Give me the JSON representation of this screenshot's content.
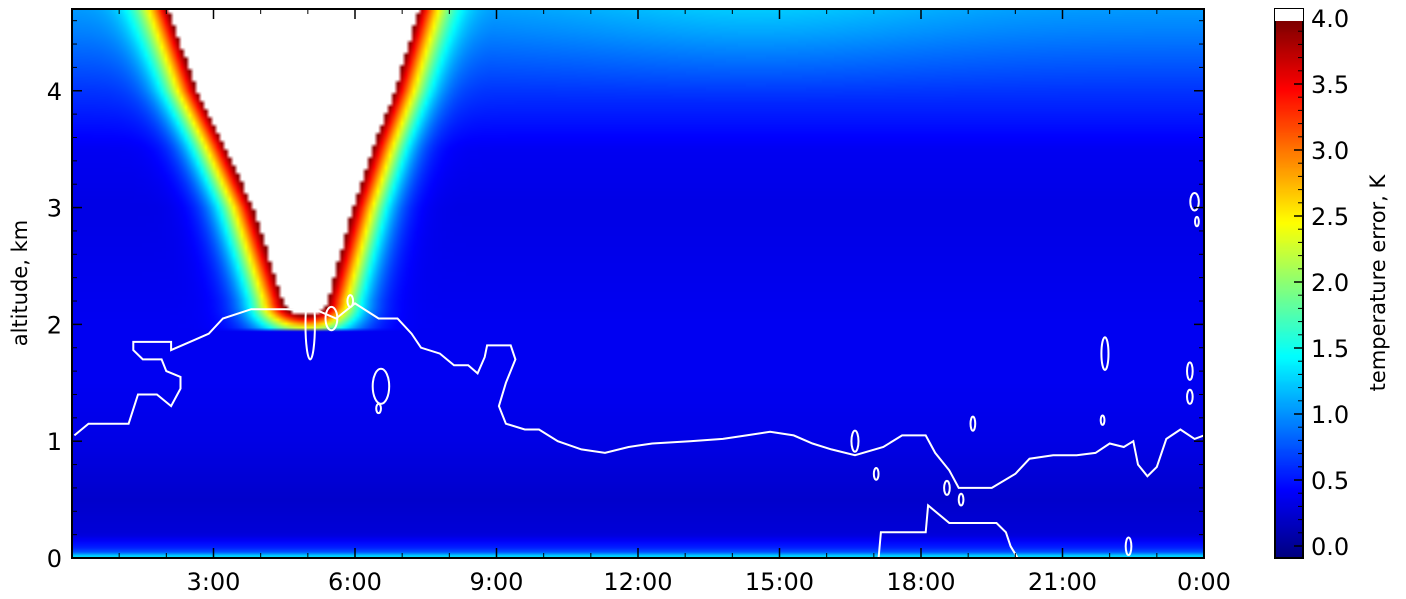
{
  "chart_data": {
    "type": "heatmap",
    "title": "",
    "xlabel": "",
    "ylabel": "altitude, km",
    "colorbar_label": "temperature error, K",
    "x_ticks": [
      "3:00",
      "6:00",
      "9:00",
      "12:00",
      "15:00",
      "18:00",
      "21:00",
      "0:00"
    ],
    "y_ticks": [
      "0",
      "1",
      "2",
      "3",
      "4"
    ],
    "colorbar_ticks": [
      "0.0",
      "0.5",
      "1.0",
      "1.5",
      "2.0",
      "2.5",
      "3.0",
      "3.5",
      "4.0"
    ],
    "xlim_hours": [
      0,
      24
    ],
    "ylim_km": [
      0,
      4.7
    ],
    "clim": [
      0,
      4
    ],
    "colormap": "jet",
    "colormap_over_color": "#ffffff",
    "contour_color": "#ffffff",
    "error_profile_clear": [
      {
        "altitude_km": 0.0,
        "error_K": 1.6
      },
      {
        "altitude_km": 0.06,
        "error_K": 0.7
      },
      {
        "altitude_km": 0.2,
        "error_K": 0.35
      },
      {
        "altitude_km": 0.5,
        "error_K": 0.3
      },
      {
        "altitude_km": 1.0,
        "error_K": 0.4
      },
      {
        "altitude_km": 1.5,
        "error_K": 0.45
      },
      {
        "altitude_km": 2.0,
        "error_K": 0.45
      },
      {
        "altitude_km": 3.0,
        "error_K": 0.4
      },
      {
        "altitude_km": 3.5,
        "error_K": 0.45
      },
      {
        "altitude_km": 4.0,
        "error_K": 0.7
      },
      {
        "altitude_km": 4.5,
        "error_K": 1.0
      },
      {
        "altitude_km": 4.7,
        "error_K": 1.1
      }
    ],
    "high_error_plume": {
      "description_of_values": "time (h) of the plume centre and its half-width at each altitude",
      "profile": [
        {
          "altitude_km": 2.2,
          "center_h": 4.95,
          "halfwidth_h": 0.0
        },
        {
          "altitude_km": 3.0,
          "center_h": 4.9,
          "halfwidth_h": 0.6
        },
        {
          "altitude_km": 4.0,
          "center_h": 4.75,
          "halfwidth_h": 1.55
        },
        {
          "altitude_km": 4.7,
          "center_h": 4.7,
          "halfwidth_h": 2.0
        }
      ],
      "peak_error_K": 4.5
    },
    "boundary_layer_contour": [
      [
        0.05,
        1.05
      ],
      [
        0.35,
        1.15
      ],
      [
        1.2,
        1.15
      ],
      [
        1.4,
        1.4
      ],
      [
        1.8,
        1.4
      ],
      [
        2.1,
        1.3
      ],
      [
        2.3,
        1.45
      ],
      [
        2.3,
        1.55
      ],
      [
        2.0,
        1.6
      ],
      [
        1.9,
        1.7
      ],
      [
        1.5,
        1.7
      ],
      [
        1.3,
        1.78
      ],
      [
        1.3,
        1.85
      ],
      [
        2.1,
        1.85
      ],
      [
        2.1,
        1.78
      ],
      [
        2.5,
        1.85
      ],
      [
        2.9,
        1.92
      ],
      [
        3.2,
        2.05
      ],
      [
        3.8,
        2.13
      ],
      [
        4.6,
        2.13
      ],
      [
        5.2,
        2.12
      ],
      [
        5.6,
        2.05
      ],
      [
        6.0,
        2.18
      ],
      [
        6.5,
        2.05
      ],
      [
        6.9,
        2.05
      ],
      [
        7.2,
        1.92
      ],
      [
        7.4,
        1.8
      ],
      [
        7.8,
        1.75
      ],
      [
        8.1,
        1.65
      ],
      [
        8.4,
        1.65
      ],
      [
        8.6,
        1.58
      ],
      [
        8.75,
        1.72
      ],
      [
        8.8,
        1.82
      ],
      [
        9.3,
        1.82
      ],
      [
        9.4,
        1.7
      ],
      [
        9.2,
        1.5
      ],
      [
        9.05,
        1.3
      ],
      [
        9.2,
        1.15
      ],
      [
        9.6,
        1.1
      ],
      [
        9.9,
        1.1
      ],
      [
        10.3,
        1.0
      ],
      [
        10.8,
        0.93
      ],
      [
        11.3,
        0.9
      ],
      [
        11.8,
        0.95
      ],
      [
        12.3,
        0.98
      ],
      [
        13.1,
        1.0
      ],
      [
        13.8,
        1.02
      ],
      [
        14.3,
        1.05
      ],
      [
        14.8,
        1.08
      ],
      [
        15.3,
        1.05
      ],
      [
        15.7,
        0.98
      ],
      [
        16.1,
        0.93
      ],
      [
        16.6,
        0.88
      ],
      [
        17.2,
        0.95
      ],
      [
        17.6,
        1.05
      ],
      [
        18.1,
        1.05
      ],
      [
        18.3,
        0.9
      ],
      [
        18.6,
        0.75
      ],
      [
        18.8,
        0.6
      ],
      [
        19.5,
        0.6
      ],
      [
        20.0,
        0.72
      ],
      [
        20.3,
        0.85
      ],
      [
        20.8,
        0.88
      ],
      [
        21.3,
        0.88
      ],
      [
        21.7,
        0.9
      ],
      [
        22.0,
        0.98
      ],
      [
        22.3,
        0.95
      ],
      [
        22.5,
        1.0
      ],
      [
        22.6,
        0.8
      ],
      [
        22.8,
        0.7
      ],
      [
        23.0,
        0.78
      ],
      [
        23.2,
        1.02
      ],
      [
        23.5,
        1.1
      ],
      [
        23.8,
        1.02
      ],
      [
        24.0,
        1.05
      ]
    ],
    "lower_contour": [
      [
        17.1,
        0.0
      ],
      [
        17.15,
        0.22
      ],
      [
        17.6,
        0.22
      ],
      [
        18.1,
        0.22
      ],
      [
        18.15,
        0.45
      ],
      [
        18.6,
        0.3
      ],
      [
        19.2,
        0.3
      ],
      [
        19.6,
        0.3
      ],
      [
        19.8,
        0.22
      ],
      [
        19.9,
        0.1
      ],
      [
        20.05,
        0.0
      ]
    ],
    "small_contours": [
      {
        "center": [
          5.05,
          2.0
        ],
        "size": [
          0.2,
          0.6
        ]
      },
      {
        "center": [
          5.5,
          2.05
        ],
        "size": [
          0.25,
          0.2
        ]
      },
      {
        "center": [
          5.9,
          2.2
        ],
        "size": [
          0.12,
          0.1
        ]
      },
      {
        "center": [
          6.55,
          1.47
        ],
        "size": [
          0.35,
          0.3
        ]
      },
      {
        "center": [
          6.5,
          1.28
        ],
        "size": [
          0.1,
          0.08
        ]
      },
      {
        "center": [
          16.6,
          1.0
        ],
        "size": [
          0.15,
          0.18
        ]
      },
      {
        "center": [
          17.05,
          0.72
        ],
        "size": [
          0.1,
          0.1
        ]
      },
      {
        "center": [
          18.55,
          0.6
        ],
        "size": [
          0.12,
          0.12
        ]
      },
      {
        "center": [
          18.85,
          0.5
        ],
        "size": [
          0.1,
          0.1
        ]
      },
      {
        "center": [
          19.1,
          1.15
        ],
        "size": [
          0.1,
          0.12
        ]
      },
      {
        "center": [
          21.9,
          1.75
        ],
        "size": [
          0.15,
          0.28
        ]
      },
      {
        "center": [
          21.85,
          1.18
        ],
        "size": [
          0.08,
          0.08
        ]
      },
      {
        "center": [
          22.4,
          0.1
        ],
        "size": [
          0.12,
          0.15
        ]
      },
      {
        "center": [
          23.7,
          1.6
        ],
        "size": [
          0.12,
          0.15
        ]
      },
      {
        "center": [
          23.7,
          1.38
        ],
        "size": [
          0.12,
          0.12
        ]
      },
      {
        "center": [
          23.8,
          3.05
        ],
        "size": [
          0.18,
          0.15
        ]
      },
      {
        "center": [
          23.85,
          2.88
        ],
        "size": [
          0.08,
          0.08
        ]
      }
    ]
  }
}
